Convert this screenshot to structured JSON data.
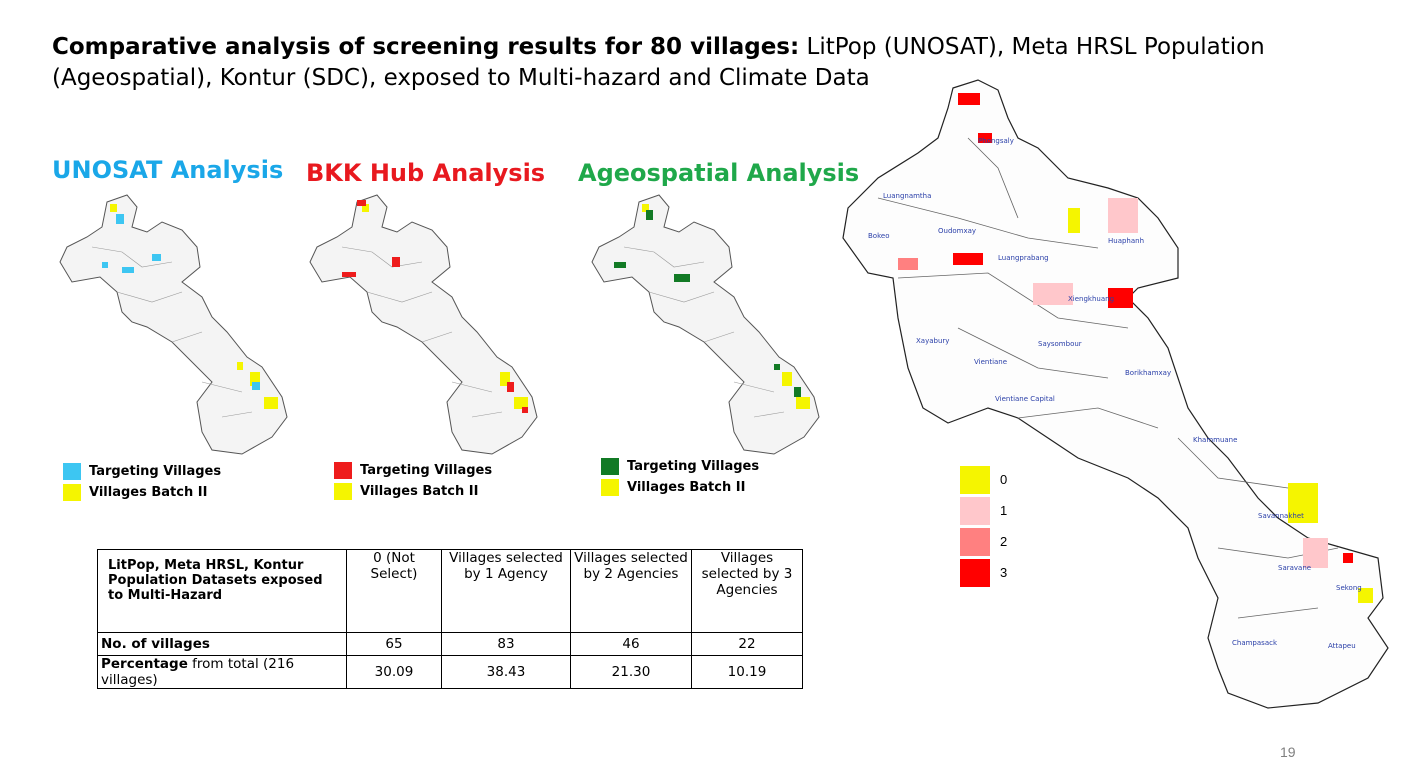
{
  "title": {
    "bold": "Comparative analysis of screening results for 80 villages:",
    "rest": " LitPop (UNOSAT), Meta HRSL Population (Ageospatial), Kontur (SDC), exposed to Multi-hazard and Climate Data"
  },
  "panels": [
    {
      "title": "UNOSAT Analysis",
      "title_color": "#1aa7e8",
      "target_color": "#3dc6f2",
      "legend": {
        "targeting": "Targeting Villages",
        "batch": "Villages Batch II"
      }
    },
    {
      "title": "BKK Hub Analysis",
      "title_color": "#e8191f",
      "target_color": "#ee1c1c",
      "legend": {
        "targeting": "Targeting Villages",
        "batch": "Villages Batch II"
      }
    },
    {
      "title": "Ageospatial Analysis",
      "title_color": "#1fa84a",
      "target_color": "#127a25",
      "legend": {
        "targeting": "Targeting Villages",
        "batch": "Villages Batch II"
      }
    }
  ],
  "batch_color": "#f5f500",
  "table": {
    "header": [
      "LitPop, Meta HRSL, Kontur Population Datasets exposed to Multi-Hazard",
      "0 (Not Select)",
      "Villages selected by 1 Agency",
      "Villages selected by 2 Agencies",
      "Villages selected by 3 Agencies"
    ],
    "rows": [
      {
        "label_bold": "No. of villages",
        "label_rest": "",
        "values": [
          "65",
          "83",
          "46",
          "22"
        ]
      },
      {
        "label_bold": "Percentage",
        "label_rest": " from total (216 villages)",
        "values": [
          "30.09",
          "38.43",
          "21.30",
          "10.19"
        ]
      }
    ]
  },
  "big_map": {
    "provinces": [
      "Phongsaly",
      "Luangnamtha",
      "Bokeo",
      "Oudomxay",
      "Luangprabang",
      "Huaphanh",
      "Xiengkhuang",
      "Xayabury",
      "Saysombour",
      "Vientiane",
      "Borikhamxay",
      "Vientiane Capital",
      "Khammuane",
      "Savannakhet",
      "Saravane",
      "Sekong",
      "Champasack",
      "Attapeu"
    ],
    "legend": [
      {
        "label": "0",
        "color": "#f5f500"
      },
      {
        "label": "1",
        "color": "#ffc7cb"
      },
      {
        "label": "2",
        "color": "#ff8080"
      },
      {
        "label": "3",
        "color": "#ff0000"
      }
    ]
  },
  "page_number": "19"
}
